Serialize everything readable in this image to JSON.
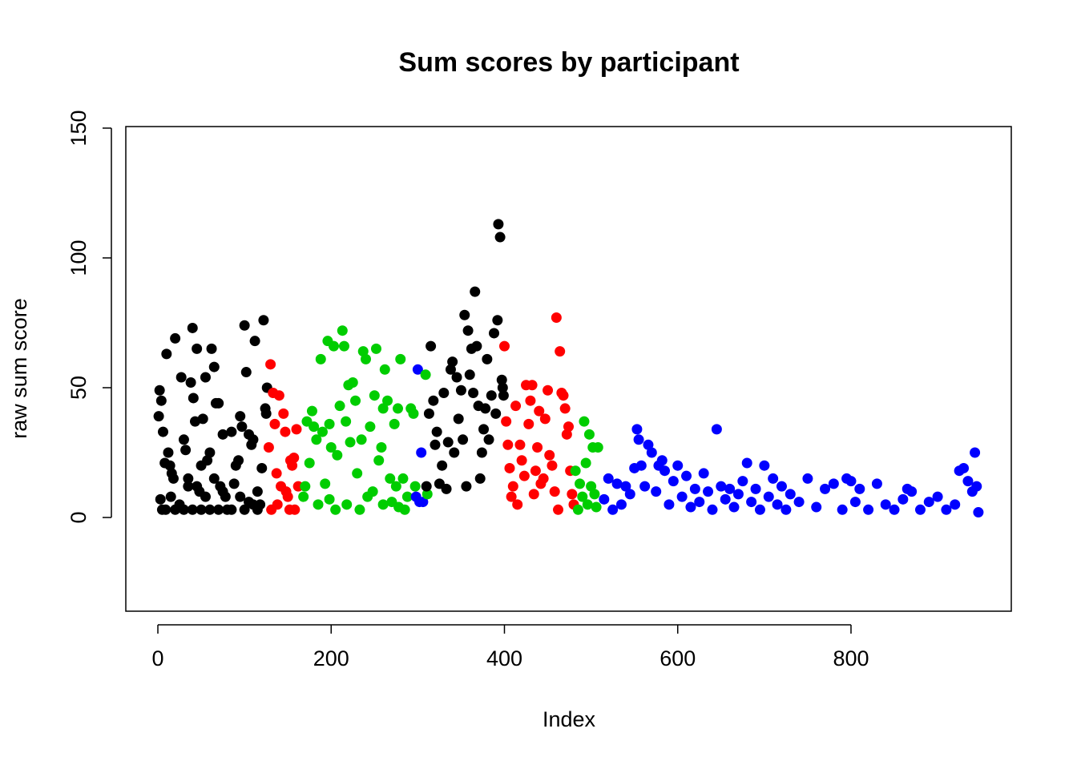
{
  "chart_data": {
    "type": "scatter",
    "title": "Sum scores by participant",
    "x_label": "Index",
    "y_label": "raw sum score",
    "xlim": [
      -37,
      985
    ],
    "ylim": [
      -36.1,
      150.6
    ],
    "xticks": [
      0,
      200,
      400,
      600,
      800
    ],
    "yticks": [
      0,
      50,
      100,
      150
    ],
    "series": [
      {
        "color": "#000000",
        "x": [
          1,
          2,
          4,
          6,
          8,
          10,
          12,
          14,
          16,
          18,
          20,
          3,
          5,
          9,
          15,
          25,
          27,
          30,
          32,
          35,
          38,
          40,
          41,
          43,
          45,
          48,
          50,
          52,
          55,
          57,
          60,
          62,
          65,
          67,
          70,
          72,
          75,
          78,
          80,
          85,
          90,
          93,
          95,
          97,
          100,
          102,
          105,
          108,
          110,
          112,
          115,
          118,
          120,
          122,
          124,
          126,
          125,
          20,
          30,
          40,
          50,
          60,
          70,
          85,
          100,
          110,
          35,
          45,
          55,
          65,
          75,
          95,
          105,
          115,
          88
        ],
        "values": [
          39,
          49,
          45,
          33,
          21,
          63,
          25,
          20,
          17,
          15,
          69,
          7,
          3,
          3,
          8,
          5,
          54,
          30,
          26,
          12,
          52,
          73,
          46,
          37,
          65,
          10,
          20,
          38,
          54,
          22,
          25,
          65,
          58,
          44,
          44,
          12,
          32,
          8,
          3,
          33,
          20,
          22,
          39,
          35,
          74,
          56,
          32,
          28,
          30,
          68,
          10,
          5,
          19,
          76,
          42,
          50,
          40,
          3,
          3,
          3,
          3,
          3,
          3,
          3,
          3,
          5,
          15,
          12,
          8,
          15,
          10,
          8,
          6,
          3,
          13
        ]
      },
      {
        "color": "#ff0000",
        "x": [
          128,
          130,
          133,
          135,
          137,
          140,
          142,
          145,
          147,
          150,
          152,
          155,
          157,
          160,
          162,
          131,
          138,
          148,
          158,
          153
        ],
        "values": [
          27,
          59,
          48,
          36,
          17,
          47,
          12,
          40,
          33,
          8,
          3,
          20,
          23,
          34,
          12,
          3,
          5,
          10,
          3,
          22
        ]
      },
      {
        "color": "#00cd00",
        "x": [
          168,
          170,
          172,
          175,
          178,
          180,
          183,
          185,
          188,
          190,
          193,
          196,
          198,
          200,
          203,
          205,
          207,
          210,
          213,
          215,
          217,
          220,
          222,
          225,
          228,
          230,
          233,
          235,
          237,
          240,
          242,
          245,
          248,
          250,
          252,
          255,
          258,
          260,
          262,
          265,
          268,
          270,
          273,
          275,
          277,
          280,
          283,
          285,
          288,
          292,
          295,
          297,
          198,
          218,
          260,
          278
        ],
        "values": [
          8,
          12,
          37,
          21,
          41,
          35,
          30,
          5,
          61,
          33,
          13,
          68,
          36,
          27,
          66,
          3,
          24,
          43,
          72,
          66,
          37,
          51,
          29,
          52,
          45,
          17,
          3,
          30,
          64,
          61,
          8,
          35,
          10,
          47,
          65,
          22,
          27,
          42,
          57,
          45,
          15,
          6,
          36,
          12,
          42,
          61,
          15,
          3,
          8,
          42,
          40,
          12,
          7,
          5,
          5,
          4
        ]
      },
      {
        "color": "#0000ff",
        "x": [
          298,
          300,
          302,
          304,
          306
        ],
        "values": [
          8,
          57,
          6,
          25,
          6
        ]
      },
      {
        "color": "#00cd00",
        "x": [
          309,
          311
        ],
        "values": [
          55,
          9
        ]
      },
      {
        "color": "#000000",
        "x": [
          310,
          313,
          315,
          318,
          320,
          322,
          325,
          328,
          330,
          333,
          335,
          338,
          340,
          342,
          345,
          347,
          350,
          352,
          354,
          356,
          358,
          360,
          362,
          364,
          366,
          368,
          370,
          372,
          374,
          376,
          378,
          380,
          382,
          385,
          388,
          390,
          392,
          393,
          395,
          397,
          398,
          399
        ],
        "values": [
          12,
          40,
          66,
          45,
          28,
          33,
          13,
          20,
          48,
          11,
          29,
          57,
          60,
          25,
          54,
          38,
          49,
          30,
          78,
          12,
          72,
          55,
          65,
          48,
          87,
          66,
          43,
          15,
          25,
          34,
          42,
          61,
          30,
          47,
          71,
          40,
          76,
          113,
          108,
          53,
          50,
          47
        ]
      },
      {
        "color": "#ff0000",
        "x": [
          400,
          402,
          404,
          406,
          408,
          410,
          413,
          415,
          418,
          420,
          423,
          425,
          428,
          430,
          432,
          434,
          436,
          438,
          440,
          442,
          445,
          447,
          450,
          452,
          455,
          458,
          460,
          462,
          464,
          466,
          468,
          470,
          472,
          474,
          476,
          478,
          480
        ],
        "values": [
          66,
          37,
          28,
          19,
          8,
          12,
          43,
          5,
          28,
          22,
          16,
          51,
          36,
          45,
          51,
          9,
          18,
          27,
          41,
          13,
          15,
          38,
          49,
          24,
          20,
          10,
          77,
          3,
          64,
          48,
          47,
          42,
          32,
          35,
          18,
          9,
          5
        ]
      },
      {
        "color": "#00cd00",
        "x": [
          482,
          485,
          487,
          490,
          492,
          494,
          496,
          498,
          500,
          502,
          504,
          506,
          508
        ],
        "values": [
          18,
          3,
          13,
          8,
          37,
          21,
          5,
          32,
          12,
          27,
          9,
          4,
          27
        ]
      },
      {
        "color": "#0000ff",
        "x": [
          515,
          520,
          525,
          530,
          535,
          540,
          545,
          550,
          553,
          555,
          558,
          562,
          566,
          570,
          575,
          578,
          582,
          585,
          590,
          595,
          600,
          605,
          610,
          615,
          620,
          625,
          630,
          635,
          640,
          645,
          650,
          655,
          660,
          665,
          670,
          675,
          680,
          685,
          690,
          695,
          700,
          705,
          710,
          715,
          720,
          725,
          730,
          740,
          750,
          760,
          770,
          780,
          790,
          795,
          800,
          805,
          810,
          820,
          830,
          840,
          850,
          860,
          865,
          870,
          880,
          890,
          900,
          910,
          920,
          925,
          930,
          935,
          940,
          943,
          945,
          947
        ],
        "values": [
          7,
          15,
          3,
          13,
          5,
          12,
          9,
          19,
          34,
          30,
          20,
          12,
          28,
          25,
          10,
          20,
          22,
          18,
          5,
          14,
          20,
          8,
          16,
          4,
          11,
          6,
          17,
          10,
          3,
          34,
          12,
          7,
          11,
          4,
          9,
          14,
          21,
          6,
          11,
          3,
          20,
          8,
          15,
          5,
          12,
          3,
          9,
          6,
          15,
          4,
          11,
          13,
          3,
          15,
          14,
          6,
          11,
          3,
          13,
          5,
          3,
          7,
          11,
          10,
          3,
          6,
          8,
          3,
          5,
          18,
          19,
          14,
          10,
          25,
          12,
          2
        ]
      }
    ]
  }
}
